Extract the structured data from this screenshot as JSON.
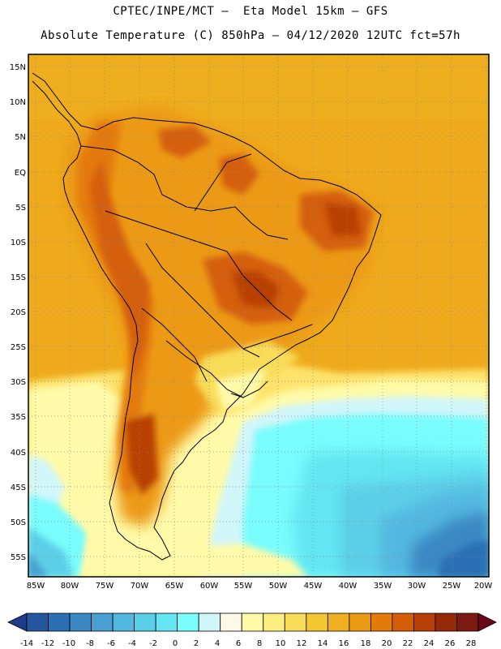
{
  "header": {
    "line1": "CPTEC/INPE/MCT –  Eta Model 15km – GFS",
    "line2": "Absolute Temperature (C) 850hPa – 04/12/2020 12UTC fct=57h"
  },
  "map": {
    "lat_labels": [
      "15N",
      "10N",
      "5N",
      "EQ",
      "5S",
      "10S",
      "15S",
      "20S",
      "25S",
      "30S",
      "35S",
      "40S",
      "45S",
      "50S",
      "55S"
    ],
    "lon_labels": [
      "85W",
      "80W",
      "75W",
      "70W",
      "65W",
      "60W",
      "55W",
      "50W",
      "45W",
      "40W",
      "35W",
      "30W",
      "25W",
      "20W"
    ]
  },
  "colorbar": {
    "labels": [
      "-14",
      "-12",
      "-10",
      "-8",
      "-6",
      "-4",
      "-2",
      "0",
      "2",
      "4",
      "6",
      "8",
      "10",
      "12",
      "14",
      "16",
      "18",
      "20",
      "22",
      "24",
      "26",
      "28"
    ],
    "colors": [
      "#1e3c8c",
      "#2456a0",
      "#2c70b4",
      "#3a88c4",
      "#4aa0d2",
      "#52b8e0",
      "#5ccfe8",
      "#64e6f2",
      "#78fcfc",
      "#d0f6fa",
      "#fff8e6",
      "#fffaa8",
      "#fdee80",
      "#f8dc58",
      "#f2c630",
      "#eeb020",
      "#ec9a14",
      "#e47a0a",
      "#d45e08",
      "#b84006",
      "#962a08",
      "#7a1a10",
      "#6a0818"
    ]
  }
}
